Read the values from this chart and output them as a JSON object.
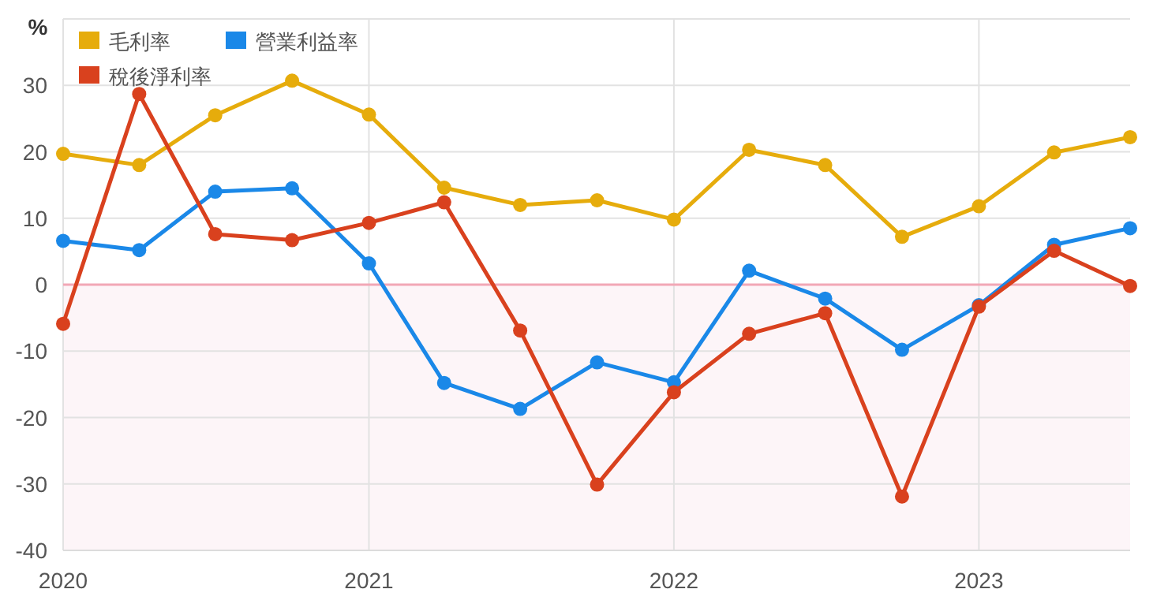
{
  "chart_data": {
    "type": "line",
    "ylabel": "%",
    "x": [
      "2020-01",
      "2020-04",
      "2020-07",
      "2020-10",
      "2021-01",
      "2021-04",
      "2021-07",
      "2021-10",
      "2022-01",
      "2022-04",
      "2022-07",
      "2022-10",
      "2023-01",
      "2023-04",
      "2023-07"
    ],
    "series": [
      {
        "name": "毛利率",
        "color": "#e6ac0c",
        "values": [
          19.7,
          18.0,
          25.5,
          30.7,
          25.6,
          14.6,
          12.0,
          12.7,
          9.8,
          20.3,
          18.0,
          7.2,
          11.8,
          19.9,
          22.2
        ]
      },
      {
        "name": "營業利益率",
        "color": "#1a88e8",
        "values": [
          6.6,
          5.2,
          14.0,
          14.5,
          3.2,
          -14.8,
          -18.7,
          -11.7,
          -14.7,
          2.1,
          -2.1,
          -9.8,
          -3.1,
          6.0,
          8.5
        ]
      },
      {
        "name": "稅後淨利率",
        "color": "#d9411e",
        "values": [
          -5.9,
          28.7,
          7.6,
          6.7,
          9.3,
          12.4,
          -6.9,
          -30.1,
          -16.2,
          -7.4,
          -4.3,
          -31.9,
          -3.3,
          5.1,
          -0.2
        ]
      }
    ],
    "xlim": [
      "2020-01",
      "2023-07"
    ],
    "xticks": [
      "2020",
      "2021",
      "2022",
      "2023"
    ],
    "ylim": [
      -40,
      40
    ],
    "yticks": [
      -40,
      -30,
      -20,
      -10,
      0,
      10,
      20,
      30,
      {
        "value": 40,
        "label": null
      }
    ],
    "ref_lines": [
      {
        "axis": "y",
        "value": 0,
        "color": "#f2a7b6"
      }
    ],
    "bands": [
      {
        "axis": "y",
        "from": -40,
        "to": 0,
        "color": "#fdf5f8"
      }
    ],
    "grid": true,
    "legend": "top left",
    "marker": "circle",
    "line_style": "solid"
  }
}
